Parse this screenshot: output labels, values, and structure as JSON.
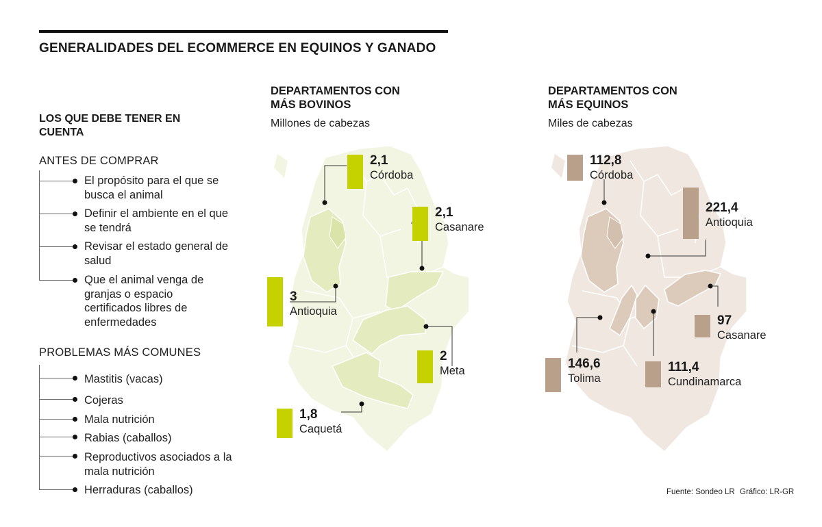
{
  "title": "GENERALIDADES DEL ECOMMERCE EN EQUINOS Y GANADO",
  "left": {
    "heading": "LOS QUE DEBE TENER EN CUENTA",
    "before": {
      "title": "ANTES DE COMPRAR",
      "items": [
        "El propósito para el que se busca el animal",
        "Definir el ambiente en el que se tendrá",
        "Revisar el estado general de salud",
        "Que el animal venga de granjas o espacio certificados libres de enfermedades"
      ]
    },
    "problems": {
      "title": "PROBLEMAS MÁS COMUNES",
      "items": [
        "Mastitis (vacas)",
        "Cojeras",
        "Mala nutrición",
        "Rabias (caballos)",
        "Reproductivos asociados a la mala nutrición",
        "Herraduras (caballos)"
      ]
    }
  },
  "colors": {
    "bovine_bar": "#c6d100",
    "bovine_region": "#e4ebbe",
    "bovine_map": "#f1f5e2",
    "equine_bar": "#b8a08a",
    "equine_region": "#dccbbb",
    "equine_map": "#efe7e0"
  },
  "chart_data": [
    {
      "type": "bar",
      "title": "DEPARTAMENTOS CON MÁS BOVINOS",
      "subtitle": "Millones de cabezas",
      "categories": [
        "Córdoba",
        "Casanare",
        "Antioquia",
        "Meta",
        "Caquetá"
      ],
      "values": [
        2.1,
        2.1,
        3,
        2,
        1.8
      ],
      "labels": [
        "2,1",
        "2,1",
        "3",
        "2",
        "1,8"
      ]
    },
    {
      "type": "bar",
      "title": "DEPARTAMENTOS CON MÁS EQUINOS",
      "subtitle": "Miles de cabezas",
      "categories": [
        "Córdoba",
        "Antioquia",
        "Casanare",
        "Tolima",
        "Cundinamarca"
      ],
      "values": [
        112.8,
        221.4,
        97,
        146.6,
        111.4
      ],
      "labels": [
        "112,8",
        "221,4",
        "97",
        "146,6",
        "111,4"
      ]
    }
  ],
  "footer": {
    "source": "Fuente: Sondeo LR",
    "credit": "Gráfico: LR-GR"
  }
}
